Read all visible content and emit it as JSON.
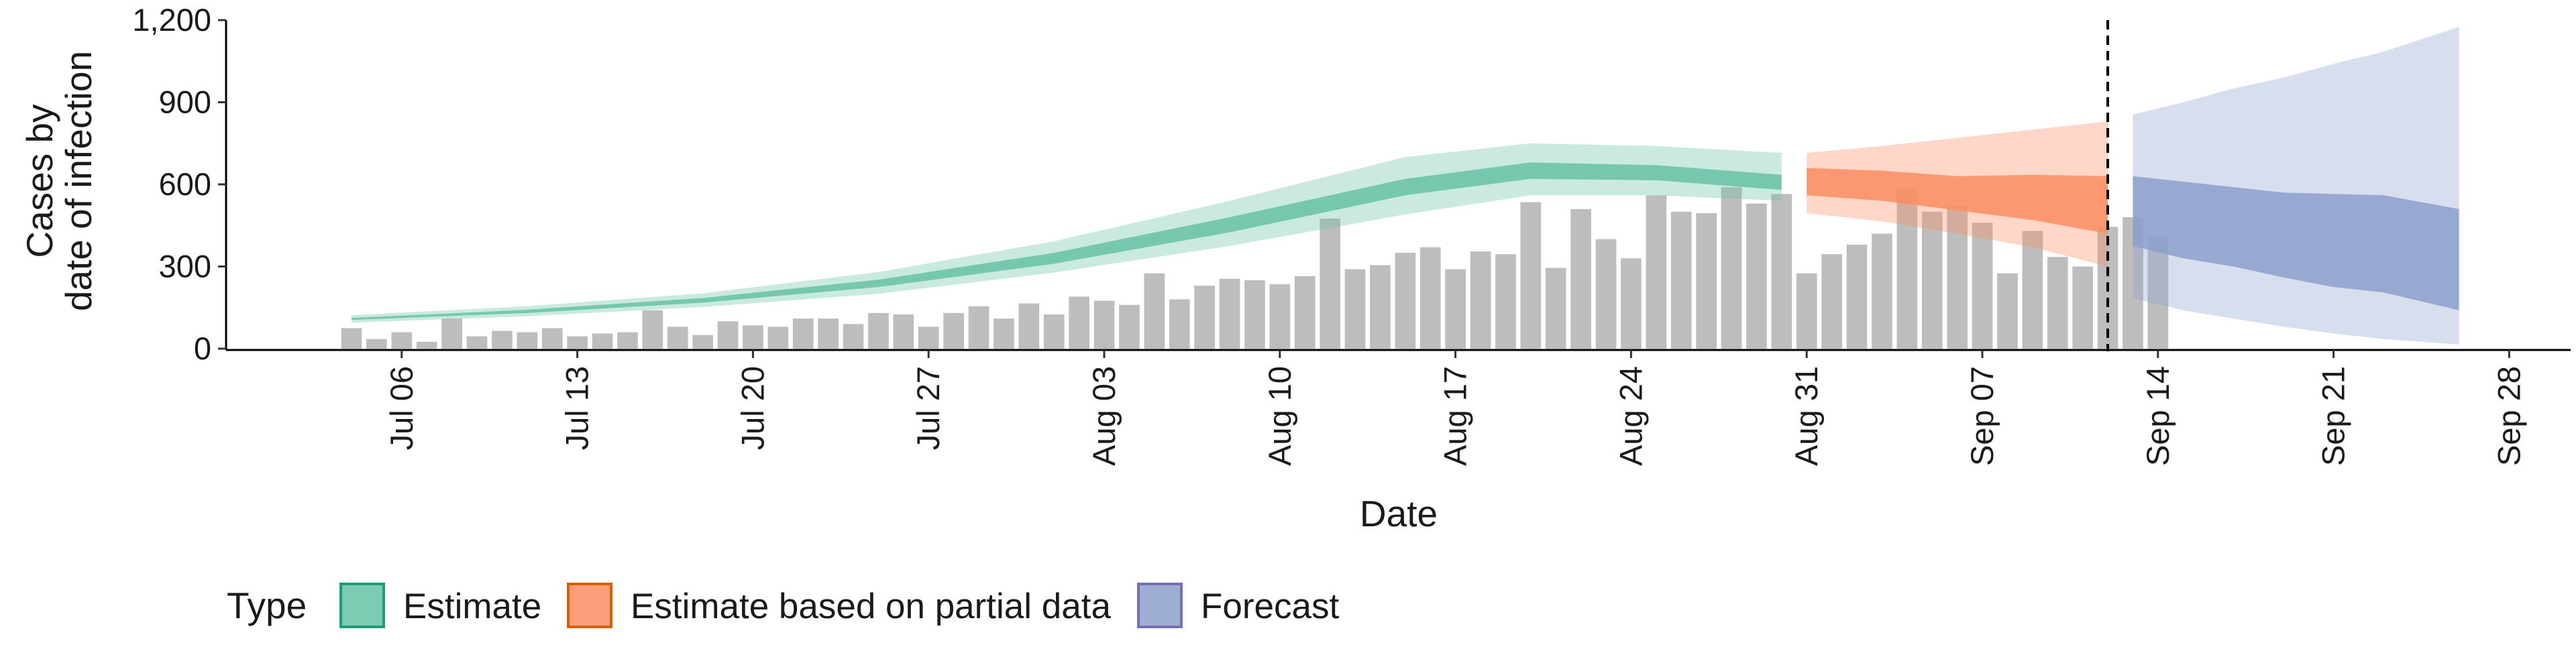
{
  "chart_data": {
    "type": "bar",
    "xlabel": "Date",
    "ylabel": [
      "Cases by",
      "date of infection"
    ],
    "ylim": [
      0,
      1200
    ],
    "yticks": [
      0,
      300,
      600,
      900,
      1200
    ],
    "ytick_labels": [
      "0",
      "300",
      "600",
      "900",
      "1,200"
    ],
    "xlim": [
      "2020-06-29",
      "2020-10-01"
    ],
    "xticks": [
      "2020-07-06",
      "2020-07-13",
      "2020-07-20",
      "2020-07-27",
      "2020-08-03",
      "2020-08-10",
      "2020-08-17",
      "2020-08-24",
      "2020-08-31",
      "2020-09-07",
      "2020-09-14",
      "2020-09-21",
      "2020-09-28"
    ],
    "xtick_labels": [
      "Jul 06",
      "Jul 13",
      "Jul 20",
      "Jul 27",
      "Aug 03",
      "Aug 10",
      "Aug 17",
      "Aug 24",
      "Aug 31",
      "Sep 07",
      "Sep 14",
      "Sep 21",
      "Sep 28"
    ],
    "grid": false,
    "legend_position": "bottom",
    "legend_title": "Type",
    "vline_date": "2020-09-12",
    "bars": {
      "start_date": "2020-07-04",
      "color": "#bdbdbd",
      "values": [
        75,
        35,
        60,
        25,
        110,
        45,
        65,
        60,
        75,
        45,
        55,
        60,
        140,
        80,
        50,
        100,
        85,
        80,
        110,
        110,
        90,
        130,
        125,
        80,
        130,
        155,
        110,
        165,
        125,
        190,
        175,
        160,
        275,
        180,
        230,
        255,
        250,
        235,
        265,
        475,
        290,
        305,
        350,
        370,
        290,
        355,
        345,
        535,
        295,
        510,
        400,
        330,
        560,
        500,
        495,
        590,
        530,
        565,
        275,
        345,
        380,
        420,
        585,
        500,
        520,
        460,
        275,
        430,
        335,
        300,
        445,
        480,
        410
      ]
    },
    "series": [
      {
        "name": "Estimate",
        "color": "#1b9e77",
        "fill": "#66c2a5",
        "start_date": "2020-07-04",
        "end_date": "2020-08-30",
        "points": [
          [
            "2020-07-04",
            105,
            112,
            95,
            122
          ],
          [
            "2020-07-11",
            130,
            142,
            118,
            155
          ],
          [
            "2020-07-18",
            168,
            185,
            152,
            202
          ],
          [
            "2020-07-25",
            225,
            252,
            200,
            280
          ],
          [
            "2020-08-01",
            310,
            350,
            278,
            392
          ],
          [
            "2020-08-08",
            425,
            480,
            375,
            540
          ],
          [
            "2020-08-15",
            560,
            620,
            490,
            700
          ],
          [
            "2020-08-20",
            620,
            680,
            560,
            750
          ],
          [
            "2020-08-25",
            615,
            670,
            560,
            740
          ],
          [
            "2020-08-30",
            580,
            635,
            540,
            715
          ]
        ]
      },
      {
        "name": "Estimate based on partial data",
        "color": "#d95f02",
        "fill": "#fc8d62",
        "start_date": "2020-08-31",
        "end_date": "2020-09-12",
        "points": [
          [
            "2020-08-31",
            560,
            660,
            495,
            715
          ],
          [
            "2020-09-03",
            540,
            650,
            465,
            740
          ],
          [
            "2020-09-06",
            505,
            630,
            420,
            770
          ],
          [
            "2020-09-09",
            470,
            635,
            370,
            800
          ],
          [
            "2020-09-12",
            420,
            630,
            300,
            830
          ]
        ]
      },
      {
        "name": "Forecast",
        "color": "#7570b3",
        "fill": "#8da0cb",
        "start_date": "2020-09-13",
        "end_date": "2020-09-26",
        "points": [
          [
            "2020-09-13",
            375,
            630,
            185,
            855
          ],
          [
            "2020-09-15",
            330,
            610,
            140,
            900
          ],
          [
            "2020-09-17",
            300,
            590,
            110,
            950
          ],
          [
            "2020-09-19",
            260,
            570,
            80,
            990
          ],
          [
            "2020-09-21",
            225,
            565,
            55,
            1040
          ],
          [
            "2020-09-23",
            205,
            560,
            35,
            1085
          ],
          [
            "2020-09-26",
            140,
            510,
            15,
            1175
          ]
        ]
      }
    ]
  }
}
